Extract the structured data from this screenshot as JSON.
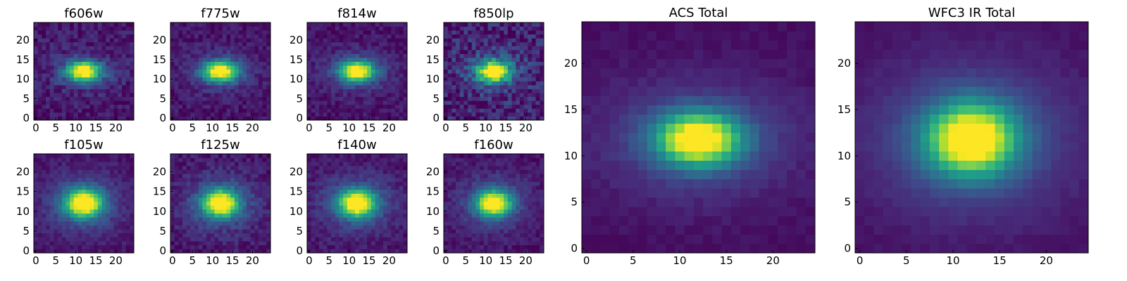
{
  "figure": {
    "description": "Per-filter postage stamp images of a galaxy plus ACS and WFC3 IR total images",
    "colormap": "viridis"
  },
  "chart_data": [
    {
      "type": "heatmap",
      "title": "f606w",
      "group": "ACS",
      "xlim": [
        0,
        25
      ],
      "ylim": [
        0,
        25
      ],
      "xticks": [
        0,
        5,
        10,
        15,
        20
      ],
      "yticks": [
        0,
        5,
        10,
        15,
        20
      ],
      "center": [
        12,
        12
      ],
      "peak_value": 0.55,
      "sigma_x": 2.9,
      "sigma_y": 1.7,
      "halo_amplitude": 0.08,
      "noise": 0.1,
      "seed": 11
    },
    {
      "type": "heatmap",
      "title": "f775w",
      "group": "ACS",
      "xlim": [
        0,
        25
      ],
      "ylim": [
        0,
        25
      ],
      "xticks": [
        0,
        5,
        10,
        15,
        20
      ],
      "yticks": [
        0,
        5,
        10,
        15,
        20
      ],
      "center": [
        12,
        12
      ],
      "peak_value": 0.62,
      "sigma_x": 3.0,
      "sigma_y": 1.8,
      "halo_amplitude": 0.09,
      "noise": 0.09,
      "seed": 23
    },
    {
      "type": "heatmap",
      "title": "f814w",
      "group": "ACS",
      "xlim": [
        0,
        25
      ],
      "ylim": [
        0,
        25
      ],
      "xticks": [
        0,
        5,
        10,
        15,
        20
      ],
      "yticks": [
        0,
        5,
        10,
        15,
        20
      ],
      "center": [
        12,
        12
      ],
      "peak_value": 0.66,
      "sigma_x": 3.0,
      "sigma_y": 1.8,
      "halo_amplitude": 0.1,
      "noise": 0.09,
      "seed": 37
    },
    {
      "type": "heatmap",
      "title": "f850lp",
      "group": "ACS",
      "xlim": [
        0,
        25
      ],
      "ylim": [
        0,
        25
      ],
      "xticks": [
        0,
        5,
        10,
        15,
        20
      ],
      "yticks": [
        0,
        5,
        10,
        15,
        20
      ],
      "center": [
        12,
        12
      ],
      "peak_value": 0.55,
      "sigma_x": 2.8,
      "sigma_y": 1.9,
      "halo_amplitude": 0.1,
      "noise": 0.16,
      "seed": 41
    },
    {
      "type": "heatmap",
      "title": "f105w",
      "group": "WFC3 IR",
      "xlim": [
        0,
        25
      ],
      "ylim": [
        0,
        25
      ],
      "xticks": [
        0,
        5,
        10,
        15,
        20
      ],
      "yticks": [
        0,
        5,
        10,
        15,
        20
      ],
      "center": [
        12,
        12
      ],
      "peak_value": 0.72,
      "sigma_x": 3.2,
      "sigma_y": 2.4,
      "halo_amplitude": 0.16,
      "noise": 0.08,
      "seed": 53
    },
    {
      "type": "heatmap",
      "title": "f125w",
      "group": "WFC3 IR",
      "xlim": [
        0,
        25
      ],
      "ylim": [
        0,
        25
      ],
      "xticks": [
        0,
        5,
        10,
        15,
        20
      ],
      "yticks": [
        0,
        5,
        10,
        15,
        20
      ],
      "center": [
        12,
        12
      ],
      "peak_value": 0.68,
      "sigma_x": 3.0,
      "sigma_y": 2.3,
      "halo_amplitude": 0.16,
      "noise": 0.1,
      "seed": 67
    },
    {
      "type": "heatmap",
      "title": "f140w",
      "group": "WFC3 IR",
      "xlim": [
        0,
        25
      ],
      "ylim": [
        0,
        25
      ],
      "xticks": [
        0,
        5,
        10,
        15,
        20
      ],
      "yticks": [
        0,
        5,
        10,
        15,
        20
      ],
      "center": [
        12,
        12
      ],
      "peak_value": 0.7,
      "sigma_x": 3.1,
      "sigma_y": 2.3,
      "halo_amplitude": 0.16,
      "noise": 0.09,
      "seed": 71
    },
    {
      "type": "heatmap",
      "title": "f160w",
      "group": "WFC3 IR",
      "xlim": [
        0,
        25
      ],
      "ylim": [
        0,
        25
      ],
      "xticks": [
        0,
        5,
        10,
        15,
        20
      ],
      "yticks": [
        0,
        5,
        10,
        15,
        20
      ],
      "center": [
        12,
        12
      ],
      "peak_value": 0.66,
      "sigma_x": 2.9,
      "sigma_y": 2.2,
      "halo_amplitude": 0.14,
      "noise": 0.08,
      "seed": 83
    },
    {
      "type": "heatmap",
      "title": "ACS Total",
      "group": "total",
      "xlim": [
        0,
        25
      ],
      "ylim": [
        0,
        25
      ],
      "xticks": [
        0,
        5,
        10,
        15,
        20
      ],
      "yticks": [
        0,
        5,
        10,
        15,
        20
      ],
      "center": [
        12,
        11.8
      ],
      "peak_value": 1.0,
      "sigma_x": 3.0,
      "sigma_y": 1.9,
      "halo_amplitude": 0.22,
      "halo_sigma_x": 7.5,
      "halo_sigma_y": 4.5,
      "noise": 0.05,
      "seed": 97
    },
    {
      "type": "heatmap",
      "title": "WFC3 IR Total",
      "group": "total",
      "xlim": [
        0,
        25
      ],
      "ylim": [
        0,
        25
      ],
      "xticks": [
        0,
        5,
        10,
        15,
        20
      ],
      "yticks": [
        0,
        5,
        10,
        15,
        20
      ],
      "center": [
        12,
        11.8
      ],
      "peak_value": 1.0,
      "sigma_x": 3.2,
      "sigma_y": 2.6,
      "halo_amplitude": 0.25,
      "halo_sigma_x": 8.0,
      "halo_sigma_y": 6.0,
      "noise": 0.04,
      "seed": 101
    }
  ]
}
